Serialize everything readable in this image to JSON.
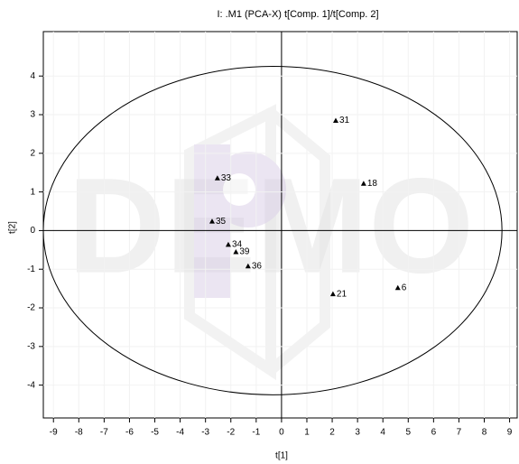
{
  "chart_data": {
    "type": "scatter",
    "title": "I: .M1 (PCA-X)   t[Comp. 1]/t[Comp. 2]",
    "x_label": "t[1]",
    "y_label": "t[2]",
    "watermark": "DEMO",
    "color": "#000000",
    "grid": true,
    "xlim": [
      -9.4,
      9.3
    ],
    "ylim": [
      -4.85,
      5.15
    ],
    "xticks": [
      -9,
      -8,
      -7,
      -6,
      -5,
      -4,
      -3,
      -2,
      -1,
      0,
      1,
      2,
      3,
      4,
      5,
      6,
      7,
      8,
      9
    ],
    "yticks": [
      -4,
      -3,
      -2,
      -1,
      0,
      1,
      2,
      3,
      4
    ],
    "labels": [
      "31",
      "18",
      "33",
      "35",
      "34",
      "39",
      "36",
      "21",
      "6"
    ],
    "x": [
      2.14,
      3.24,
      -2.53,
      -2.74,
      -2.1,
      -1.8,
      -1.32,
      2.03,
      4.59
    ],
    "values": [
      2.85,
      1.22,
      1.36,
      0.24,
      -0.36,
      -0.55,
      -0.92,
      -1.64,
      -1.48
    ],
    "ellipse": {
      "cx": -0.35,
      "cy": 0,
      "rx": 9.05,
      "ry": 4.25
    }
  }
}
